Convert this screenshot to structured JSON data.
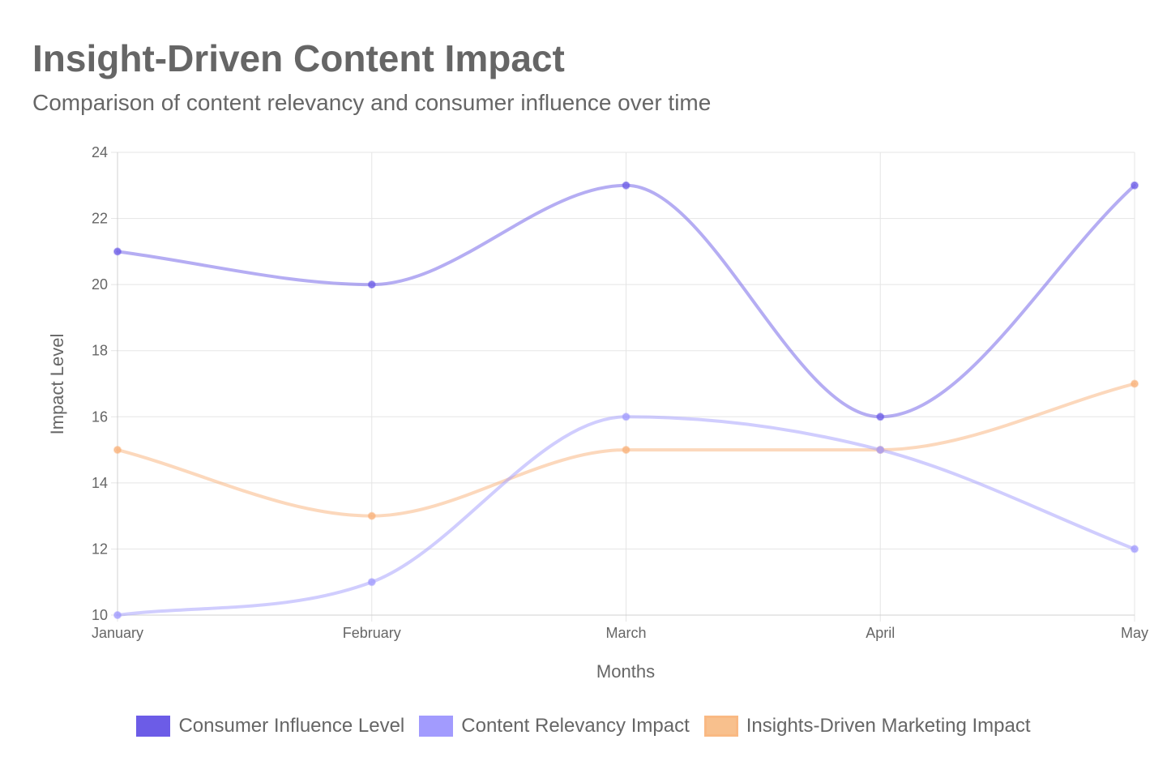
{
  "chart_data": {
    "type": "line",
    "title": "Insight-Driven Content Impact",
    "subtitle": "Comparison of content relevancy and consumer influence over time",
    "xlabel": "Months",
    "ylabel": "Impact Level",
    "categories": [
      "January",
      "February",
      "March",
      "April",
      "May"
    ],
    "ylim": [
      10,
      24
    ],
    "yticks": [
      10,
      12,
      14,
      16,
      18,
      20,
      22,
      24
    ],
    "grid": true,
    "legend_position": "bottom",
    "series": [
      {
        "name": "Consumer Influence Level",
        "values": [
          21,
          20,
          23,
          16,
          23
        ],
        "color": "#6c5ce7",
        "fill": "#6c5ce7"
      },
      {
        "name": "Content Relevancy Impact",
        "values": [
          10,
          11,
          16,
          15,
          12
        ],
        "color": "#a29bfe",
        "fill": "#a29bfe"
      },
      {
        "name": "Insights-Driven Marketing Impact",
        "values": [
          15,
          13,
          15,
          15,
          17
        ],
        "color": "#fab17a",
        "fill": "#f8c08d"
      }
    ]
  }
}
